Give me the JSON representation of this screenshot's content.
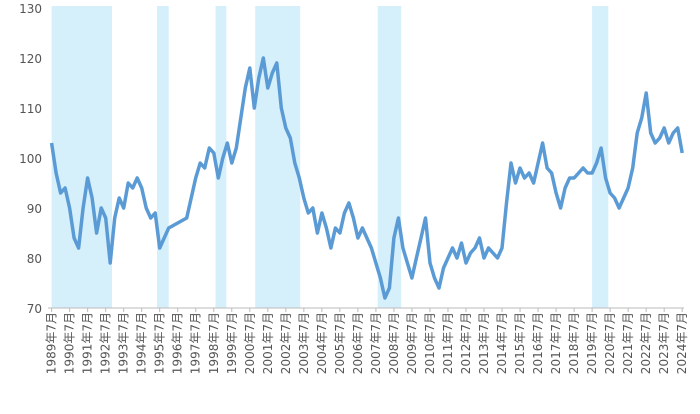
{
  "chart_data": {
    "type": "line",
    "x": [
      1989.5,
      1989.75,
      1990.0,
      1990.25,
      1990.5,
      1990.75,
      1991.0,
      1991.25,
      1991.5,
      1991.75,
      1992.0,
      1992.25,
      1992.5,
      1992.75,
      1993.0,
      1993.25,
      1993.5,
      1993.75,
      1994.0,
      1994.25,
      1994.5,
      1994.75,
      1995.0,
      1995.25,
      1995.5,
      1995.75,
      1996.0,
      1996.5,
      1997.0,
      1997.5,
      1997.75,
      1998.0,
      1998.25,
      1998.5,
      1998.75,
      1999.0,
      1999.25,
      1999.5,
      1999.75,
      2000.0,
      2000.25,
      2000.5,
      2000.75,
      2001.0,
      2001.25,
      2001.5,
      2001.75,
      2002.0,
      2002.25,
      2002.5,
      2002.75,
      2003.0,
      2003.25,
      2003.5,
      2003.75,
      2004.0,
      2004.25,
      2004.5,
      2004.75,
      2005.0,
      2005.25,
      2005.5,
      2005.75,
      2006.0,
      2006.25,
      2006.5,
      2006.75,
      2007.0,
      2007.25,
      2007.5,
      2007.75,
      2008.0,
      2008.25,
      2008.5,
      2008.75,
      2009.0,
      2009.25,
      2009.5,
      2009.75,
      2010.0,
      2010.25,
      2010.5,
      2010.75,
      2011.0,
      2011.25,
      2011.5,
      2011.75,
      2012.0,
      2012.25,
      2012.5,
      2012.75,
      2013.0,
      2013.25,
      2013.5,
      2013.75,
      2014.0,
      2014.25,
      2014.5,
      2014.75,
      2015.0,
      2015.25,
      2015.5,
      2015.75,
      2016.0,
      2016.25,
      2016.5,
      2016.75,
      2017.0,
      2017.25,
      2017.5,
      2017.75,
      2018.0,
      2018.25,
      2018.5,
      2018.75,
      2019.0,
      2019.25,
      2019.5,
      2019.75,
      2020.0,
      2020.25,
      2020.5,
      2020.75,
      2021.0,
      2021.25,
      2021.5,
      2021.75,
      2022.0,
      2022.25,
      2022.5,
      2022.75,
      2023.0,
      2023.25,
      2023.5,
      2023.75,
      2024.0,
      2024.25,
      2024.5
    ],
    "values": [
      103,
      97,
      93,
      94,
      90,
      84,
      82,
      90,
      96,
      92,
      85,
      90,
      88,
      79,
      88,
      92,
      90,
      95,
      94,
      96,
      94,
      90,
      88,
      89,
      82,
      84,
      86,
      87,
      88,
      96,
      99,
      98,
      102,
      101,
      96,
      100,
      103,
      99,
      102,
      108,
      114,
      118,
      110,
      116,
      120,
      114,
      117,
      119,
      110,
      106,
      104,
      99,
      96,
      92,
      89,
      90,
      85,
      89,
      86,
      82,
      86,
      85,
      89,
      91,
      88,
      84,
      86,
      84,
      82,
      79,
      76,
      72,
      74,
      84,
      88,
      82,
      79,
      76,
      80,
      84,
      88,
      79,
      76,
      74,
      78,
      80,
      82,
      80,
      83,
      79,
      81,
      82,
      84,
      80,
      82,
      81,
      80,
      82,
      91,
      99,
      95,
      98,
      96,
      97,
      95,
      99,
      103,
      98,
      97,
      93,
      90,
      94,
      96,
      96,
      97,
      98,
      97,
      97,
      99,
      102,
      96,
      93,
      92,
      90,
      92,
      94,
      98,
      105,
      108,
      113,
      105,
      103,
      104,
      106,
      103,
      105,
      106,
      101
    ],
    "color": "#5b9bd5",
    "shaded_periods": [
      [
        1989.5,
        1992.85
      ],
      [
        1995.35,
        1996.0
      ],
      [
        1998.6,
        1999.2
      ],
      [
        2000.8,
        2003.3
      ],
      [
        2007.6,
        2008.9
      ],
      [
        2019.5,
        2020.4
      ]
    ],
    "shade_color": "#d5effb",
    "xlim": [
      1989.3,
      2024.6
    ],
    "xticks": [
      {
        "value": 1989.5,
        "label": "1989年7月"
      },
      {
        "value": 1990.5,
        "label": "1990年7月"
      },
      {
        "value": 1991.5,
        "label": "1991年7月"
      },
      {
        "value": 1992.5,
        "label": "1992年7月"
      },
      {
        "value": 1993.5,
        "label": "1993年7月"
      },
      {
        "value": 1994.5,
        "label": "1994年7月"
      },
      {
        "value": 1995.5,
        "label": "1995年7月"
      },
      {
        "value": 1996.5,
        "label": "1996年7月"
      },
      {
        "value": 1997.5,
        "label": "1997年7月"
      },
      {
        "value": 1998.5,
        "label": "1998年7月"
      },
      {
        "value": 1999.5,
        "label": "1999年7月"
      },
      {
        "value": 2000.5,
        "label": "2000年7月"
      },
      {
        "value": 2001.5,
        "label": "2001年7月"
      },
      {
        "value": 2002.5,
        "label": "2002年7月"
      },
      {
        "value": 2003.5,
        "label": "2003年7月"
      },
      {
        "value": 2004.5,
        "label": "2004年7月"
      },
      {
        "value": 2005.5,
        "label": "2005年7月"
      },
      {
        "value": 2006.5,
        "label": "2006年7月"
      },
      {
        "value": 2007.5,
        "label": "2007年7月"
      },
      {
        "value": 2008.5,
        "label": "2008年7月"
      },
      {
        "value": 2009.5,
        "label": "2009年7月"
      },
      {
        "value": 2010.5,
        "label": "2010年7月"
      },
      {
        "value": 2011.5,
        "label": "2011年7月"
      },
      {
        "value": 2012.5,
        "label": "2012年7月"
      },
      {
        "value": 2013.5,
        "label": "2013年7月"
      },
      {
        "value": 2014.5,
        "label": "2014年7月"
      },
      {
        "value": 2015.5,
        "label": "2015年7月"
      },
      {
        "value": 2016.5,
        "label": "2016年7月"
      },
      {
        "value": 2017.5,
        "label": "2017年7月"
      },
      {
        "value": 2018.5,
        "label": "2018年7月"
      },
      {
        "value": 2019.5,
        "label": "2019年7月"
      },
      {
        "value": 2020.5,
        "label": "2020年7月"
      },
      {
        "value": 2021.5,
        "label": "2021年7月"
      },
      {
        "value": 2022.5,
        "label": "2022年7月"
      },
      {
        "value": 2023.5,
        "label": "2023年7月"
      },
      {
        "value": 2024.5,
        "label": "2024年7月"
      }
    ],
    "ylim": [
      70,
      130
    ],
    "yticks": [
      70,
      80,
      90,
      100,
      110,
      120,
      130
    ]
  }
}
